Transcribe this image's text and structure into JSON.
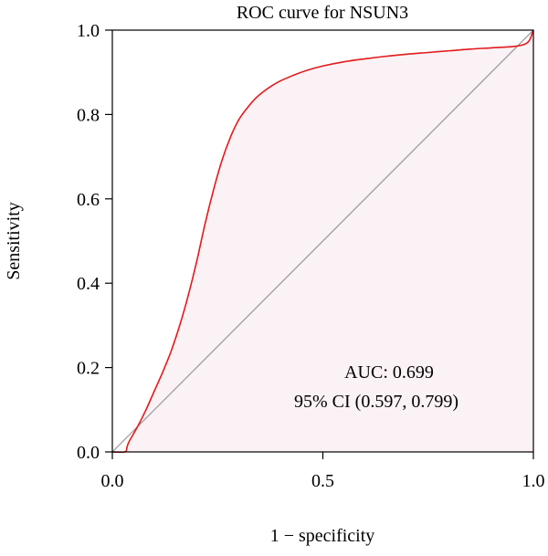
{
  "chart_data": {
    "type": "line",
    "title": "ROC curve for NSUN3",
    "xlabel": "1 − specificity",
    "ylabel": "Sensitivity",
    "xlim": [
      0,
      1
    ],
    "ylim": [
      0,
      1
    ],
    "x_ticks": [
      0,
      0.5,
      1
    ],
    "x_tick_labels": [
      "0.0",
      "0.5",
      "1.0"
    ],
    "y_ticks": [
      0,
      0.2,
      0.4,
      0.6,
      0.8,
      1
    ],
    "y_tick_labels": [
      "0.0",
      "0.2",
      "0.4",
      "0.6",
      "0.8",
      "1.0"
    ],
    "grid": false,
    "series": [
      {
        "color": "#e31a1c",
        "fill": "#fbf2f5",
        "x": [
          0,
          0.03,
          0.035,
          0.04,
          0.06,
          0.08,
          0.1,
          0.12,
          0.14,
          0.16,
          0.18,
          0.2,
          0.22,
          0.24,
          0.26,
          0.28,
          0.3,
          0.32,
          0.34,
          0.36,
          0.38,
          0.4,
          0.43,
          0.46,
          0.5,
          0.55,
          0.6,
          0.65,
          0.7,
          0.75,
          0.8,
          0.85,
          0.9,
          0.95,
          0.975,
          0.99,
          1
        ],
        "y": [
          0,
          0,
          0.012,
          0.025,
          0.06,
          0.1,
          0.145,
          0.19,
          0.24,
          0.3,
          0.37,
          0.45,
          0.54,
          0.62,
          0.69,
          0.745,
          0.787,
          0.815,
          0.838,
          0.855,
          0.869,
          0.88,
          0.893,
          0.904,
          0.915,
          0.925,
          0.932,
          0.938,
          0.943,
          0.947,
          0.951,
          0.955,
          0.958,
          0.961,
          0.965,
          0.975,
          1
        ]
      },
      {
        "color": "#9e9e9e",
        "x": [
          0,
          1
        ],
        "y": [
          0,
          1
        ]
      }
    ],
    "annotations": {
      "auc": "AUC: 0.699",
      "ci": "95% CI (0.597, 0.799)"
    }
  }
}
